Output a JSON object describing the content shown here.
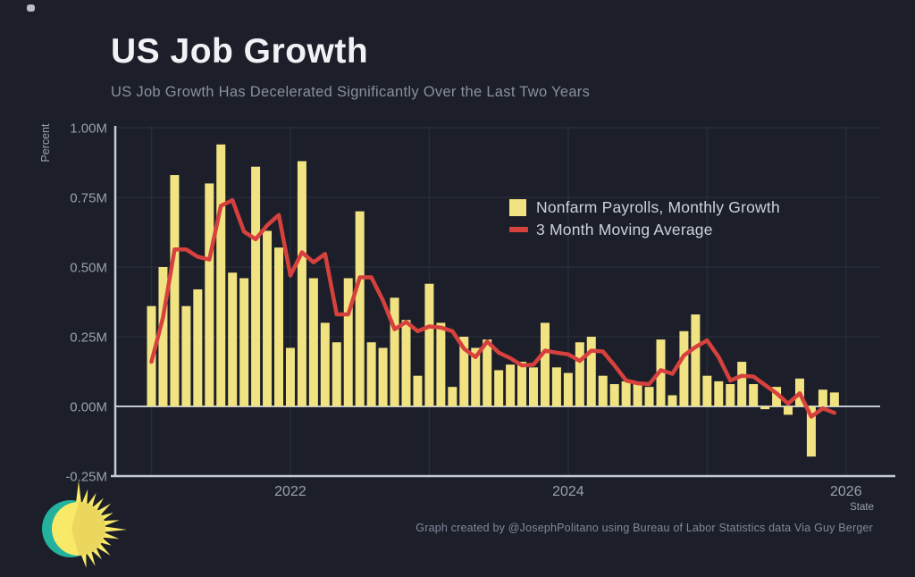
{
  "header": {
    "title": "US Job Growth",
    "subtitle": "US Job Growth Has Decelerated Significantly Over the Last Two Years"
  },
  "legend": {
    "bars_label": "Nonfarm Payrolls, Monthly Growth",
    "line_label": "3 Month Moving Average"
  },
  "footer": {
    "credit": "Graph created by @JosephPolitano using Bureau of Labor Statistics data Via Guy Berger"
  },
  "axes": {
    "y_axis_title": "Percent",
    "x_axis_title": "State",
    "y_tick_labels": [
      "1.00M",
      "0.75M",
      "0.50M",
      "0.25M",
      "0.00M",
      "-0.25M"
    ],
    "x_tick_labels": [
      "2022",
      "2024",
      "2026"
    ]
  },
  "colors": {
    "background": "#1c1f29",
    "bar_fill": "#f1e282",
    "line_color": "#d7413d",
    "grid_color": "#272c38",
    "zero_line": "#c3c7d0",
    "axis_line": "#c6cad3",
    "tick_text": "#9aa0ab",
    "title_text": "#f1f2f5",
    "subtitle_text": "#8a909c",
    "logo_teal": "#25c2aa",
    "logo_sun": "#f8e968",
    "logo_sun_shade": "#e9d35c"
  },
  "chart_data": {
    "type": "bar",
    "title": "US Job Growth",
    "xlabel": "State",
    "ylabel": "Percent",
    "ylim": [
      -0.25,
      1.0
    ],
    "y_tick_values": [
      1.0,
      0.75,
      0.5,
      0.25,
      0.0,
      -0.25
    ],
    "x_start": "2021-01",
    "frequency": "monthly",
    "x_year_gridlines": [
      2021,
      2022,
      2023,
      2024,
      2025,
      2026
    ],
    "x_labeled_ticks": [
      2022,
      2024,
      2026
    ],
    "legend_position": "upper right",
    "grid": true,
    "units": "millions of jobs (M)",
    "series": [
      {
        "name": "Nonfarm Payrolls, Monthly Growth",
        "type": "bar",
        "values": [
          0.36,
          0.5,
          0.83,
          0.36,
          0.42,
          0.8,
          0.94,
          0.48,
          0.46,
          0.86,
          0.63,
          0.57,
          0.21,
          0.88,
          0.46,
          0.3,
          0.23,
          0.46,
          0.7,
          0.23,
          0.21,
          0.39,
          0.31,
          0.11,
          0.44,
          0.3,
          0.07,
          0.25,
          0.21,
          0.24,
          0.13,
          0.15,
          0.16,
          0.14,
          0.3,
          0.14,
          0.12,
          0.23,
          0.25,
          0.11,
          0.08,
          0.09,
          0.08,
          0.07,
          0.24,
          0.04,
          0.27,
          0.33,
          0.11,
          0.09,
          0.08,
          0.16,
          0.08,
          -0.01,
          0.07,
          -0.03,
          0.1,
          -0.18,
          0.06,
          0.05
        ]
      },
      {
        "name": "3 Month Moving Average",
        "type": "line",
        "values": [
          0.16,
          0.32,
          0.563,
          0.563,
          0.537,
          0.527,
          0.72,
          0.74,
          0.627,
          0.6,
          0.65,
          0.687,
          0.47,
          0.553,
          0.517,
          0.547,
          0.33,
          0.33,
          0.463,
          0.463,
          0.38,
          0.277,
          0.303,
          0.27,
          0.287,
          0.283,
          0.27,
          0.207,
          0.177,
          0.233,
          0.193,
          0.173,
          0.147,
          0.15,
          0.2,
          0.193,
          0.187,
          0.163,
          0.2,
          0.197,
          0.147,
          0.093,
          0.083,
          0.08,
          0.13,
          0.117,
          0.183,
          0.213,
          0.237,
          0.177,
          0.093,
          0.11,
          0.107,
          0.077,
          0.047,
          0.01,
          0.047,
          -0.037,
          -0.007,
          -0.023
        ]
      }
    ]
  }
}
